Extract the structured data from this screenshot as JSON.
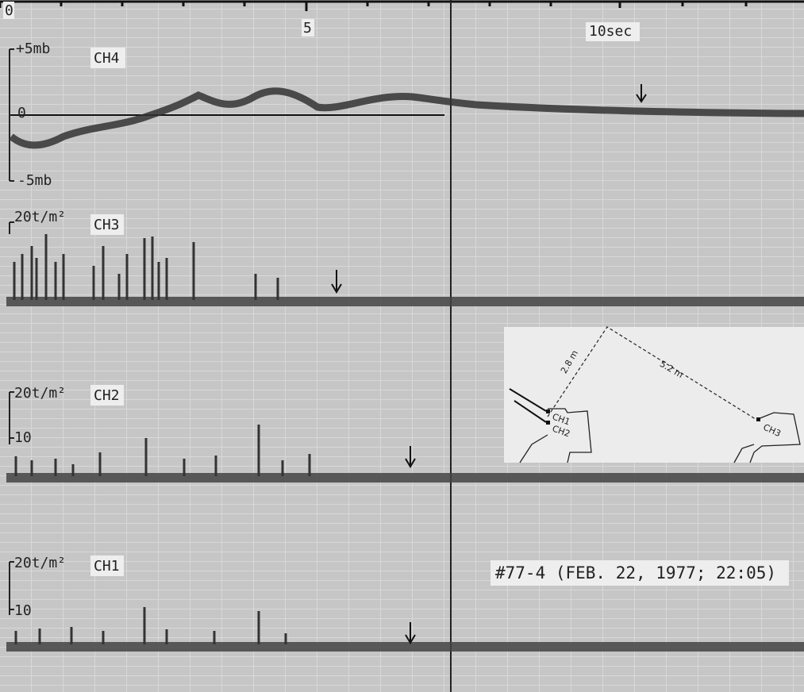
{
  "time_axis": {
    "labels": [
      "0",
      "5",
      "10sec"
    ]
  },
  "channels": [
    {
      "name": "CH4",
      "scale_top": "+5mb",
      "zero": "0",
      "scale_bottom": "-5mb"
    },
    {
      "name": "CH3",
      "scale_top": "20t/m²"
    },
    {
      "name": "CH2",
      "scale_top": "20t/m²",
      "scale_mid": "10"
    },
    {
      "name": "CH1",
      "scale_top": "20t/m²",
      "scale_mid": "10"
    }
  ],
  "caption": "#77-4 (FEB. 22, 1977; 22:05)",
  "inset": {
    "distances": [
      "2.8 m",
      "5.2 m"
    ],
    "gauges": [
      "CH1",
      "CH2",
      "CH3"
    ]
  }
}
